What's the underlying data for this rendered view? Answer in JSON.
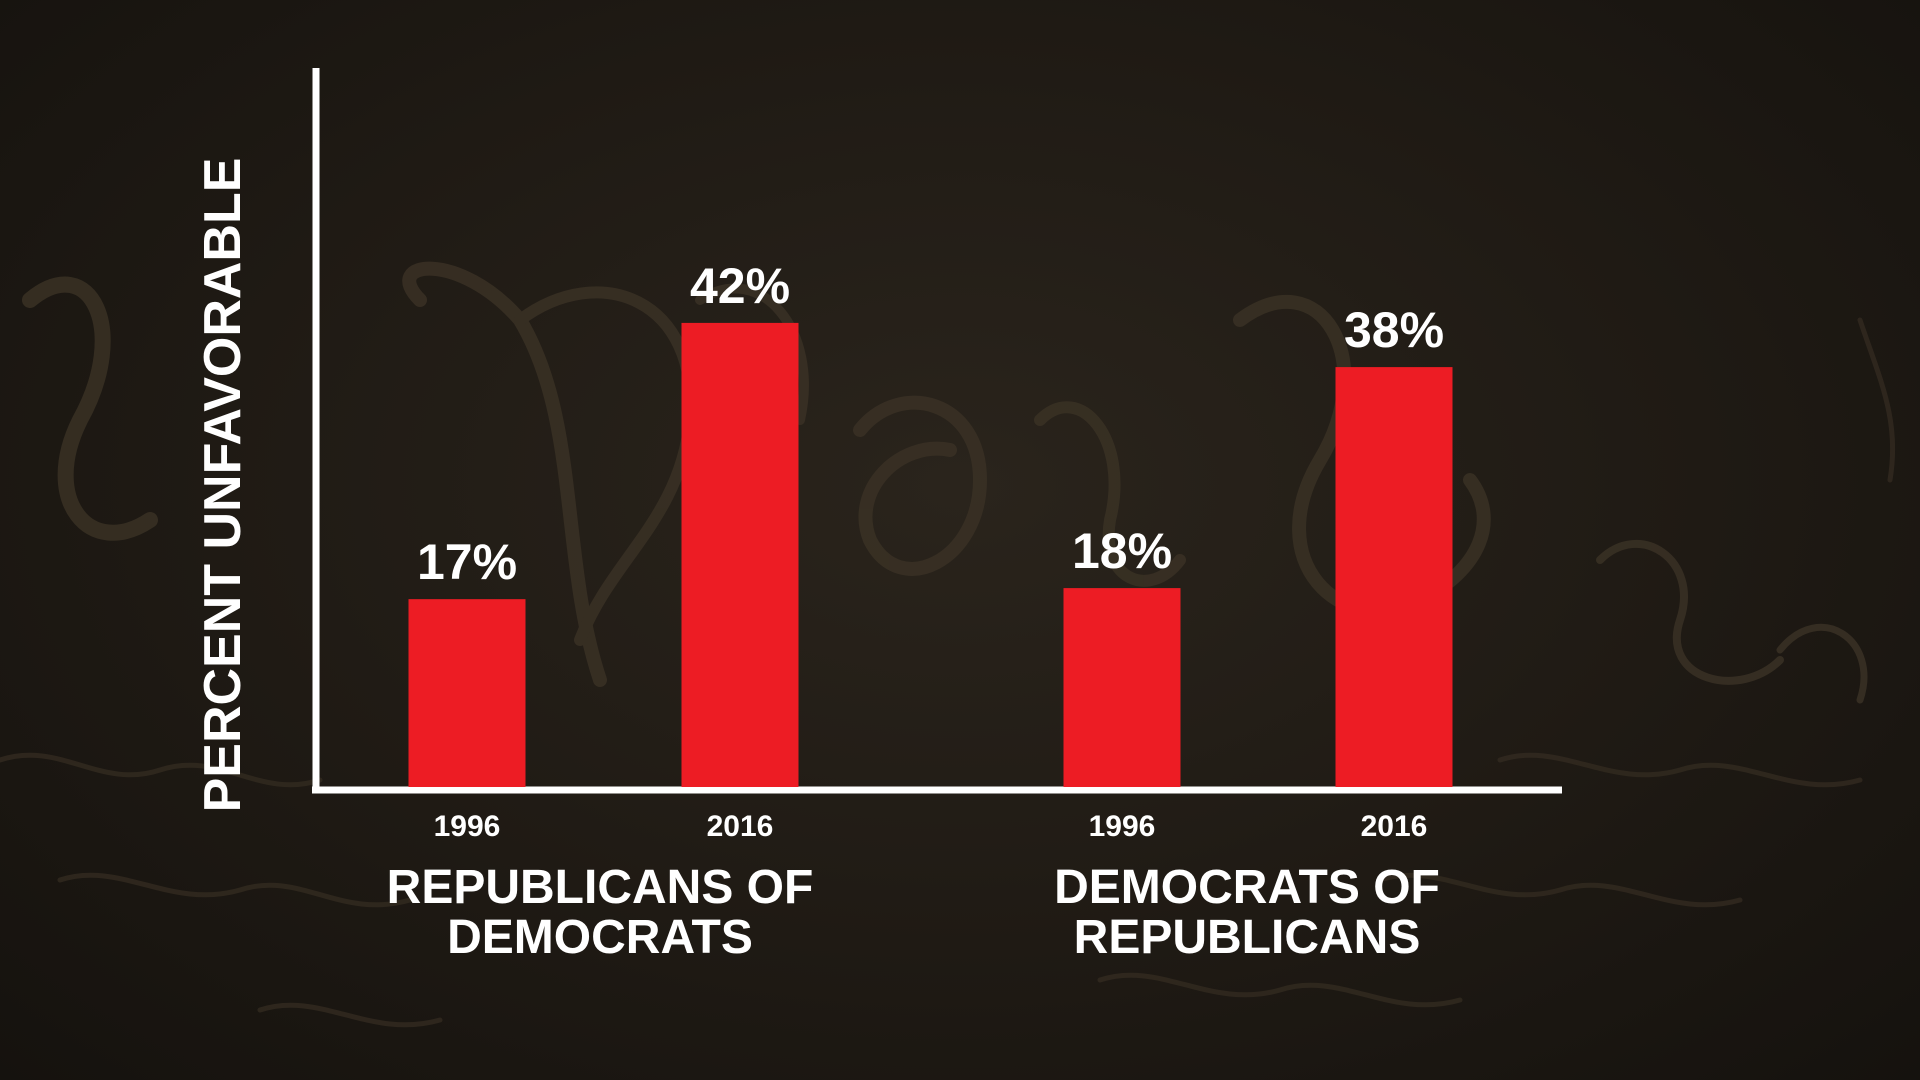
{
  "colors": {
    "bar": "#ed1c24",
    "axis": "#ffffff",
    "text": "#ffffff",
    "background": "#1f1a14"
  },
  "chart_data": {
    "type": "bar",
    "ylabel": "PERCENT UNFAVORABLE",
    "xlabel": "",
    "ylim": [
      0,
      50
    ],
    "grid": false,
    "groups": [
      {
        "label_lines": [
          "REPUBLICANS OF",
          "DEMOCRATS"
        ],
        "bars": [
          {
            "category": "1996",
            "value": 17,
            "label": "17%"
          },
          {
            "category": "2016",
            "value": 42,
            "label": "42%"
          }
        ]
      },
      {
        "label_lines": [
          "DEMOCRATS OF",
          "REPUBLICANS"
        ],
        "bars": [
          {
            "category": "1996",
            "value": 18,
            "label": "18%"
          },
          {
            "category": "2016",
            "value": 38,
            "label": "38%"
          }
        ]
      }
    ]
  }
}
